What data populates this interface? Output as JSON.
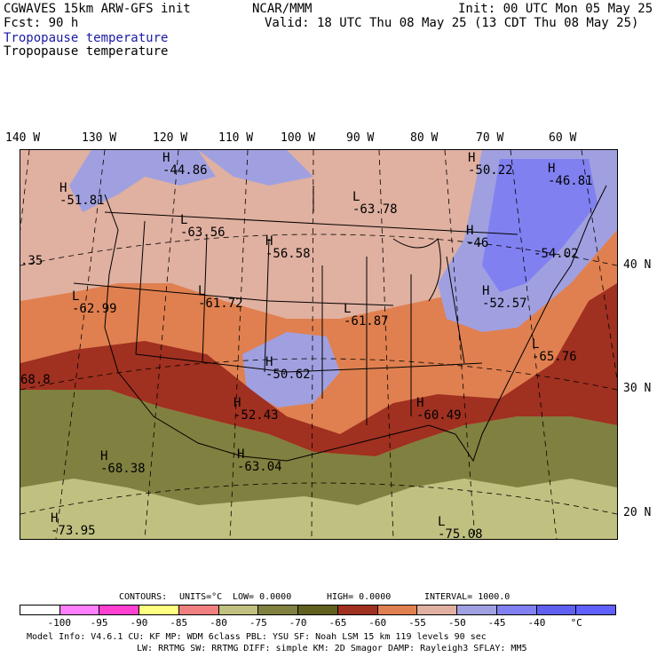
{
  "header": {
    "model": "CGWAVES 15km ARW-GFS init",
    "org": "NCAR/MMM",
    "init": "Init: 00 UTC Mon 05 May 25",
    "fcst": "Fcst:   90 h",
    "valid": "Valid: 18 UTC Thu 08 May 25 (13 CDT Thu 08 May 25)",
    "field_title_blue": "Tropopause temperature",
    "field_title_black": "Tropopause temperature"
  },
  "longitudes": [
    "140 W",
    "130 W",
    "120 W",
    "110 W",
    "100 W",
    "90 W",
    "80 W",
    "70 W",
    "60 W"
  ],
  "latitudes": [
    "40 N",
    "30 N",
    "20 N"
  ],
  "map_labels": [
    {
      "kind": "H",
      "value": "-44.86"
    },
    {
      "kind": "H",
      "value": "-51.81"
    },
    {
      "kind": "H",
      "value": "-50.22"
    },
    {
      "kind": "H",
      "value": "-46.81"
    },
    {
      "kind": "L",
      "value": "-63.78"
    },
    {
      "kind": "L",
      "value": "-63.56"
    },
    {
      "kind": "H",
      "value": "-56.58"
    },
    {
      "kind": "H",
      "value": "-46"
    },
    {
      "kind": "",
      "value": "-54.02"
    },
    {
      "kind": "",
      "value": ".35"
    },
    {
      "kind": "L",
      "value": "-62.99"
    },
    {
      "kind": "L",
      "value": "-61.72"
    },
    {
      "kind": "L",
      "value": "-61.87"
    },
    {
      "kind": "H",
      "value": "-52.57"
    },
    {
      "kind": "H",
      "value": "-50.62"
    },
    {
      "kind": "L",
      "value": "-65.76"
    },
    {
      "kind": "",
      "value": "68.8"
    },
    {
      "kind": "H",
      "value": "-52.43"
    },
    {
      "kind": "H",
      "value": "-60.49"
    },
    {
      "kind": "H",
      "value": "-68.38"
    },
    {
      "kind": "H",
      "value": "-63.04"
    },
    {
      "kind": "H",
      "value": "-73.95"
    },
    {
      "kind": "L",
      "value": "-75.08"
    }
  ],
  "contours_line": {
    "contours": "CONTOURS:",
    "units": "UNITS=°C",
    "low": "LOW=  0.0000",
    "high": "HIGH=  0.0000",
    "interval": "INTERVAL=    1000.0"
  },
  "colorbar": {
    "colors": [
      "#ffffff",
      "#ff80ff",
      "#ff40d0",
      "#ffff80",
      "#f08080",
      "#c0c080",
      "#808040",
      "#606020",
      "#a03020",
      "#e08050",
      "#e0b0a0",
      "#a0a0e0",
      "#8080f0",
      "#6060f0",
      "#6060ff"
    ],
    "ticks": [
      "-100",
      "-95",
      "-90",
      "-85",
      "-80",
      "-75",
      "-70",
      "-65",
      "-60",
      "-55",
      "-50",
      "-45",
      "-40",
      "°C"
    ]
  },
  "footer": {
    "line1": "Model Info: V4.6.1     CU: KF        MP: WDM 6class   PBL: YSU       SF: Noah LSM    15 km   119 levels   90 sec",
    "line2": "LW: RRTMG    SW: RRTMG   DIFF: simple KM: 2D Smagor DAMP: Rayleigh3  SFLAY: MM5"
  }
}
